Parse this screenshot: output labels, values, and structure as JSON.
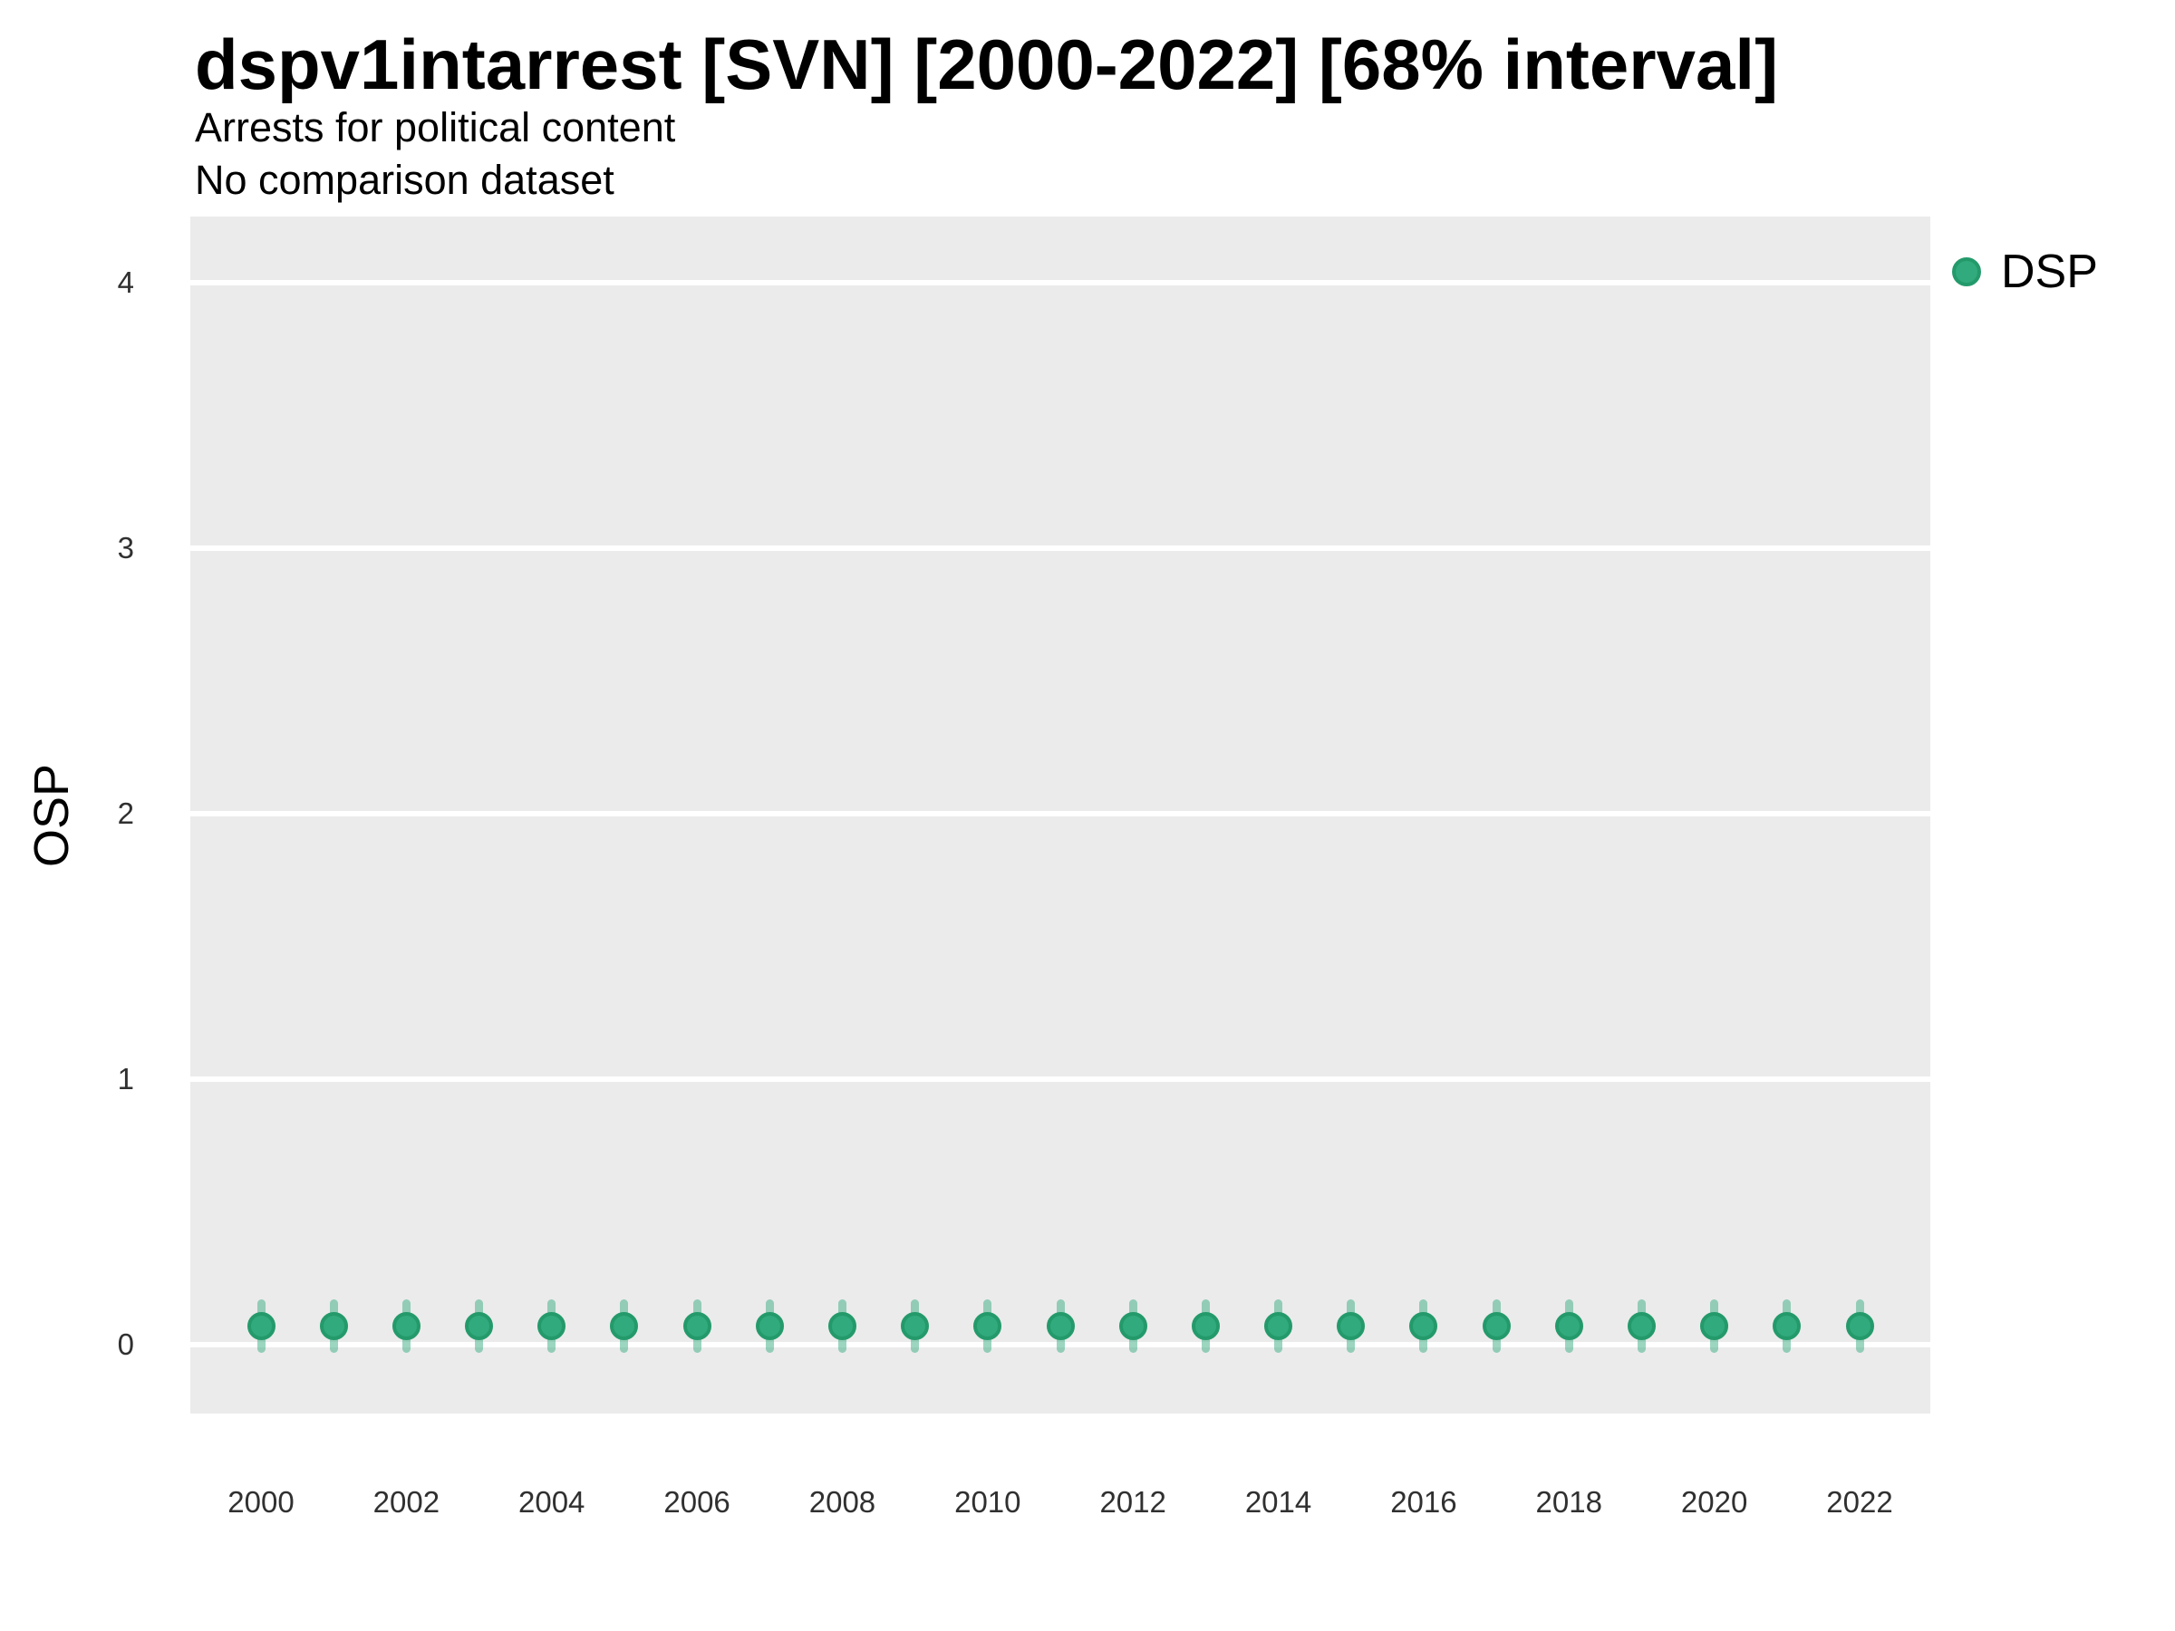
{
  "header": {
    "title": "dspv1intarrest [SVN] [2000-2022] [68% interval]",
    "subtitle_line1": "Arrests for political content",
    "subtitle_line2": "No comparison dataset"
  },
  "axes": {
    "y_label": "OSP"
  },
  "legend": {
    "items": [
      {
        "label": "DSP",
        "marker": "circle-icon"
      }
    ]
  },
  "colors": {
    "point_fill": "#31AA7D",
    "point_stroke": "#249A6B",
    "interval_band": "rgba(49,170,125,0.48)",
    "panel_background": "#EBEBEB",
    "gridline": "#FFFFFF",
    "axis_text": "#303030"
  },
  "chart_data": {
    "type": "scatter",
    "title": "dspv1intarrest [SVN] [2000-2022] [68% interval]",
    "subtitle": [
      "Arrests for political content",
      "No comparison dataset"
    ],
    "xlabel": "",
    "ylabel": "OSP",
    "interval_level": "68%",
    "grid": "horizontal-major-only",
    "legend_position": "top-right",
    "ylim": [
      -0.26,
      4.25
    ],
    "yticks": [
      0,
      1,
      2,
      3,
      4
    ],
    "xticks": [
      2000,
      2002,
      2004,
      2006,
      2008,
      2010,
      2012,
      2014,
      2016,
      2018,
      2020,
      2022
    ],
    "x": [
      2000,
      2001,
      2002,
      2003,
      2004,
      2005,
      2006,
      2007,
      2008,
      2009,
      2010,
      2011,
      2012,
      2013,
      2014,
      2015,
      2016,
      2017,
      2018,
      2019,
      2020,
      2021,
      2022
    ],
    "series": [
      {
        "name": "DSP",
        "estimate": [
          0.07,
          0.07,
          0.07,
          0.07,
          0.07,
          0.07,
          0.07,
          0.07,
          0.07,
          0.07,
          0.07,
          0.07,
          0.07,
          0.07,
          0.07,
          0.07,
          0.07,
          0.07,
          0.07,
          0.07,
          0.07,
          0.07,
          0.07
        ],
        "lower": [
          -0.03,
          -0.03,
          -0.03,
          -0.03,
          -0.03,
          -0.03,
          -0.03,
          -0.03,
          -0.03,
          -0.03,
          -0.03,
          -0.03,
          -0.03,
          -0.03,
          -0.03,
          -0.03,
          -0.03,
          -0.03,
          -0.03,
          -0.03,
          -0.03,
          -0.03,
          -0.03
        ],
        "upper": [
          0.17,
          0.17,
          0.17,
          0.17,
          0.17,
          0.17,
          0.17,
          0.17,
          0.17,
          0.17,
          0.17,
          0.17,
          0.17,
          0.17,
          0.17,
          0.17,
          0.17,
          0.17,
          0.17,
          0.17,
          0.17,
          0.17,
          0.17
        ]
      }
    ]
  }
}
